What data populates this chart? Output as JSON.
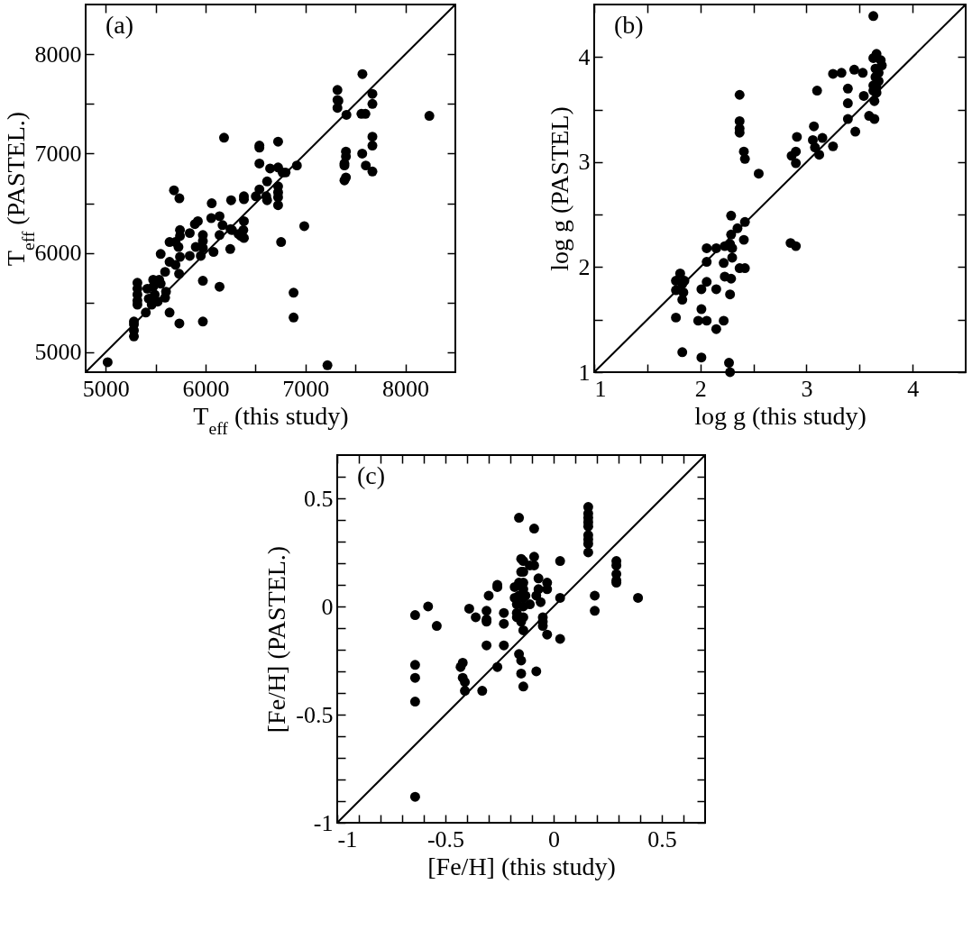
{
  "chart_data": [
    {
      "type": "scatter",
      "xlabel": "T$_{eff}$ (this study)",
      "ylabel": "T$_{eff}$ (PASTEL.)",
      "annotations": [
        "(a)"
      ],
      "xlim": [
        4800,
        8500
      ],
      "ylim": [
        4800,
        8500
      ],
      "xticks": [
        5000,
        {
          "value": 5500,
          "label": null
        },
        6000,
        {
          "value": 6500,
          "label": null
        },
        7000,
        {
          "value": 7500,
          "label": null
        },
        8000
      ],
      "yticks": [
        5000,
        {
          "value": 5500,
          "label": null
        },
        6000,
        {
          "value": 6500,
          "label": null
        },
        7000,
        {
          "value": 7500,
          "label": null
        },
        8000
      ],
      "series": [
        {
          "marker": "circle",
          "color": "#000000",
          "x": [
            5020,
            7220,
            8240,
            7570,
            7320,
            7320,
            7330,
            7320,
            7410,
            7560,
            7600,
            7670,
            7670,
            7670,
            7670,
            7405,
            7405,
            7390,
            7390,
            7405,
            7390,
            7568,
            7604,
            7670,
            6914,
            6988,
            6756,
            6881,
            6881,
            6185,
            6539,
            6539,
            6726,
            6539,
            6646,
            6726,
            6771,
            6801,
            6616,
            6539,
            6503,
            6607,
            6616,
            6726,
            6726,
            6726,
            6726,
            6384,
            6384,
            6256,
            6062,
            6057,
            6140,
            6170,
            6250,
            6265,
            6384,
            6378,
            6330,
            6354,
            6384,
            6247,
            6140,
            6080,
            5923,
            5893,
            5842,
            5973,
            5973,
            5973,
            5952,
            5902,
            5842,
            5744,
            5744,
            5684,
            5738,
            5640,
            5699,
            5729,
            5551,
            5640,
            5699,
            5744,
            5735,
            5595,
            5536,
            5476,
            5476,
            5491,
            5432,
            5417,
            5551,
            5604,
            5595,
            5521,
            5461,
            5402,
            5318,
            5318,
            5318,
            5318,
            5318,
            5283,
            5283,
            5283,
            5283,
            5640,
            5738,
            5973,
            5973,
            6140
          ],
          "values": [
            4900,
            4870,
            7380,
            7800,
            7640,
            7540,
            7530,
            7460,
            7390,
            7400,
            7400,
            7600,
            7500,
            7170,
            7080,
            7020,
            6970,
            6900,
            6880,
            6760,
            6730,
            7000,
            6880,
            6820,
            6880,
            6270,
            6110,
            5600,
            5350,
            7160,
            7080,
            7060,
            7120,
            6900,
            6850,
            6860,
            6810,
            6810,
            6720,
            6640,
            6570,
            6570,
            6530,
            6670,
            6610,
            6560,
            6480,
            6570,
            6540,
            6530,
            6500,
            6350,
            6370,
            6280,
            6240,
            6230,
            6320,
            6230,
            6190,
            6170,
            6150,
            6040,
            6180,
            6010,
            6320,
            6290,
            6200,
            6180,
            6120,
            6050,
            5970,
            6060,
            5970,
            6230,
            6170,
            6630,
            6550,
            6110,
            6110,
            6060,
            5990,
            5910,
            5880,
            5960,
            5790,
            5810,
            5730,
            5730,
            5660,
            5580,
            5540,
            5640,
            5690,
            5610,
            5550,
            5510,
            5480,
            5400,
            5700,
            5640,
            5580,
            5520,
            5480,
            5310,
            5280,
            5220,
            5160,
            5400,
            5290,
            5310,
            5720,
            5660
          ]
        },
        {
          "type": "line",
          "color": "#000000",
          "x": [
            4800,
            8500
          ],
          "values": [
            4800,
            8500
          ]
        }
      ]
    },
    {
      "type": "scatter",
      "xlabel": "log g (this study)",
      "ylabel": "log g (PASTEL)",
      "annotations": [
        "(b)"
      ],
      "xlim": [
        1,
        4.5
      ],
      "ylim": [
        1,
        4.5
      ],
      "xticks": [
        1,
        {
          "value": 1.5,
          "label": null
        },
        2,
        {
          "value": 2.5,
          "label": null
        },
        3,
        {
          "value": 3.5,
          "label": null
        },
        4
      ],
      "yticks": [
        1,
        {
          "value": 1.5,
          "label": null
        },
        2,
        {
          "value": 2.5,
          "label": null
        },
        3,
        {
          "value": 3.5,
          "label": null
        },
        4
      ],
      "series": [
        {
          "marker": "circle",
          "color": "#000000",
          "x": [
            3.63,
            3.66,
            3.63,
            3.7,
            3.71,
            3.65,
            3.68,
            3.65,
            3.68,
            3.63,
            3.66,
            3.63,
            3.66,
            3.64,
            3.59,
            3.64,
            3.53,
            3.45,
            3.33,
            3.25,
            3.39,
            3.39,
            3.54,
            3.39,
            3.46,
            3.1,
            3.07,
            3.06,
            3.08,
            3.12,
            3.15,
            3.25,
            2.91,
            2.9,
            2.86,
            2.9,
            2.85,
            2.9,
            2.37,
            2.37,
            2.37,
            2.37,
            2.41,
            2.42,
            2.55,
            2.29,
            2.42,
            2.35,
            2.29,
            2.23,
            2.28,
            2.3,
            2.15,
            2.06,
            2.41,
            2.06,
            2.22,
            2.3,
            2.37,
            2.42,
            2.23,
            2.29,
            2.06,
            2.15,
            2.01,
            2.28,
            1.81,
            1.77,
            1.85,
            1.83,
            1.77,
            1.84,
            1.83,
            1.77,
            2.01,
            1.98,
            2.06,
            2.22,
            2.15,
            1.83,
            2.01,
            2.27,
            2.28
          ],
          "values": [
            4.39,
            4.03,
            3.99,
            3.97,
            3.92,
            3.89,
            3.85,
            3.81,
            3.77,
            3.73,
            3.71,
            3.68,
            3.66,
            3.58,
            3.44,
            3.41,
            3.85,
            3.88,
            3.85,
            3.84,
            3.7,
            3.56,
            3.63,
            3.41,
            3.29,
            3.68,
            3.34,
            3.21,
            3.14,
            3.07,
            3.23,
            3.15,
            3.24,
            3.1,
            3.06,
            2.99,
            2.23,
            2.2,
            3.64,
            3.39,
            3.32,
            3.28,
            3.1,
            3.03,
            2.89,
            2.49,
            2.43,
            2.37,
            2.31,
            2.2,
            2.22,
            2.18,
            2.18,
            2.18,
            2.26,
            2.05,
            2.04,
            2.09,
            1.99,
            1.99,
            1.91,
            1.89,
            1.86,
            1.79,
            1.79,
            1.74,
            1.94,
            1.87,
            1.87,
            1.84,
            1.78,
            1.76,
            1.69,
            1.52,
            1.6,
            1.49,
            1.49,
            1.49,
            1.41,
            1.19,
            1.14,
            1.09,
            1.0
          ]
        },
        {
          "type": "line",
          "color": "#000000",
          "x": [
            1,
            4.5
          ],
          "values": [
            1,
            4.5
          ]
        }
      ]
    },
    {
      "type": "scatter",
      "xlabel": "[Fe/H] (this study)",
      "ylabel": "[Fe/H] (PASTEL.)",
      "annotations": [
        "(c)"
      ],
      "xlim": [
        -1,
        0.7
      ],
      "ylim": [
        -1,
        0.7
      ],
      "xticks": [
        -1,
        {
          "value": -0.9,
          "label": null
        },
        {
          "value": -0.8,
          "label": null
        },
        {
          "value": -0.7,
          "label": null
        },
        {
          "value": -0.6,
          "label": null
        },
        -0.5,
        {
          "value": -0.4,
          "label": null
        },
        {
          "value": -0.3,
          "label": null
        },
        {
          "value": -0.2,
          "label": null
        },
        {
          "value": -0.1,
          "label": null
        },
        0,
        {
          "value": 0.1,
          "label": null
        },
        {
          "value": 0.2,
          "label": null
        },
        {
          "value": 0.3,
          "label": null
        },
        {
          "value": 0.4,
          "label": null
        },
        0.5,
        {
          "value": 0.6,
          "label": null
        }
      ],
      "yticks": [
        -1,
        {
          "value": -0.9,
          "label": null
        },
        {
          "value": -0.8,
          "label": null
        },
        {
          "value": -0.7,
          "label": null
        },
        {
          "value": -0.6,
          "label": null
        },
        -0.5,
        {
          "value": -0.4,
          "label": null
        },
        {
          "value": -0.3,
          "label": null
        },
        {
          "value": -0.2,
          "label": null
        },
        {
          "value": -0.1,
          "label": null
        },
        0,
        {
          "value": 0.1,
          "label": null
        },
        {
          "value": 0.2,
          "label": null
        },
        {
          "value": 0.3,
          "label": null
        },
        {
          "value": 0.4,
          "label": null
        },
        0.5,
        {
          "value": 0.6,
          "label": null
        }
      ],
      "series": [
        {
          "marker": "circle",
          "color": "#000000",
          "x": [
            -0.64,
            -0.64,
            -0.64,
            -0.64,
            -0.64,
            -0.58,
            -0.54,
            -0.42,
            -0.43,
            -0.42,
            -0.41,
            -0.41,
            -0.39,
            -0.36,
            -0.33,
            -0.31,
            -0.31,
            -0.31,
            -0.31,
            -0.3,
            -0.26,
            -0.26,
            -0.26,
            -0.23,
            -0.23,
            -0.23,
            -0.16,
            -0.09,
            -0.15,
            -0.14,
            -0.11,
            -0.09,
            -0.09,
            -0.15,
            -0.14,
            -0.18,
            -0.16,
            -0.14,
            -0.14,
            -0.16,
            -0.18,
            -0.14,
            -0.13,
            -0.17,
            -0.14,
            -0.11,
            -0.17,
            -0.17,
            -0.14,
            -0.15,
            -0.14,
            -0.16,
            -0.15,
            -0.15,
            -0.14,
            -0.08,
            -0.07,
            -0.08,
            -0.06,
            -0.07,
            -0.03,
            -0.03,
            -0.05,
            -0.05,
            -0.05,
            -0.03,
            0.03,
            0.03,
            0.03,
            0.16,
            0.16,
            0.16,
            0.16,
            0.16,
            0.16,
            0.16,
            0.16,
            0.16,
            0.19,
            0.19,
            0.29,
            0.29,
            0.29,
            0.29,
            0.29,
            0.39
          ],
          "values": [
            -0.04,
            -0.27,
            -0.33,
            -0.44,
            -0.88,
            0.0,
            -0.09,
            -0.26,
            -0.28,
            -0.33,
            -0.35,
            -0.39,
            -0.01,
            -0.05,
            -0.39,
            -0.02,
            -0.06,
            -0.07,
            -0.18,
            0.05,
            0.1,
            0.09,
            -0.28,
            -0.03,
            -0.08,
            -0.18,
            0.41,
            0.36,
            0.22,
            0.21,
            0.19,
            0.19,
            0.23,
            0.16,
            0.16,
            0.09,
            0.11,
            0.11,
            0.08,
            0.05,
            0.04,
            0.04,
            0.05,
            0.01,
            0.0,
            0.01,
            -0.03,
            -0.05,
            -0.05,
            -0.07,
            -0.11,
            -0.22,
            -0.25,
            -0.31,
            -0.37,
            -0.3,
            0.13,
            0.05,
            0.02,
            0.08,
            0.11,
            0.08,
            -0.05,
            -0.07,
            -0.09,
            -0.13,
            0.21,
            0.04,
            -0.15,
            0.46,
            0.43,
            0.41,
            0.39,
            0.37,
            0.33,
            0.31,
            0.29,
            0.25,
            0.05,
            -0.02,
            0.21,
            0.19,
            0.15,
            0.12,
            0.11,
            0.04
          ]
        },
        {
          "type": "line",
          "color": "#000000",
          "x": [
            -1,
            0.7
          ],
          "values": [
            -1,
            0.7
          ]
        }
      ]
    }
  ]
}
